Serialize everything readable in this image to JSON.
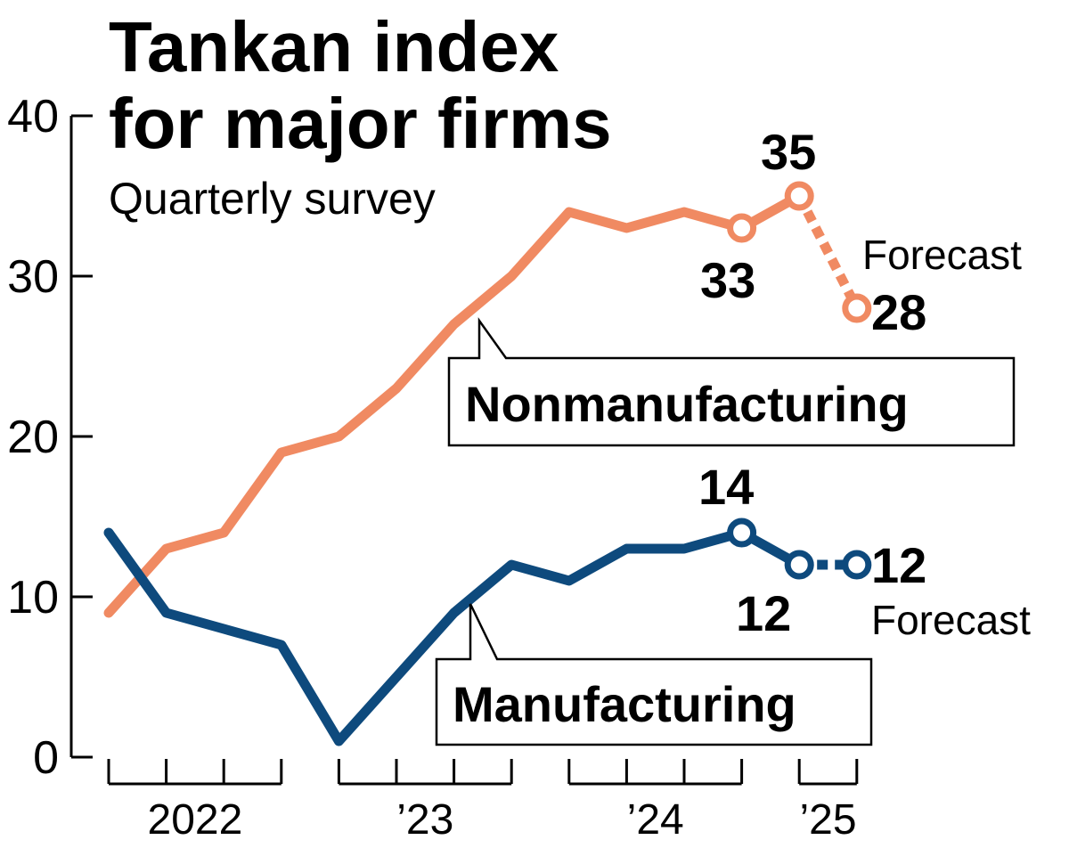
{
  "chart_data": {
    "type": "line",
    "title_lines": [
      "Tankan index",
      "for major firms"
    ],
    "subtitle": "Quarterly survey",
    "ylim": [
      0,
      40
    ],
    "yticks": [
      0,
      10,
      20,
      30,
      40
    ],
    "year_labels": [
      "2022",
      "’23",
      "’24",
      "’25"
    ],
    "forecast_label": "Forecast",
    "x": [
      "2022 Q1",
      "2022 Q2",
      "2022 Q3",
      "2022 Q4",
      "2023 Q1",
      "2023 Q2",
      "2023 Q3",
      "2023 Q4",
      "2024 Q1",
      "2024 Q2",
      "2024 Q3",
      "2024 Q4",
      "2025 Q1",
      "2025 Q2 (forecast)"
    ],
    "series": [
      {
        "name": "Nonmanufacturing",
        "color": "#f08a62",
        "values": [
          9,
          13,
          14,
          19,
          20,
          23,
          27,
          30,
          34,
          33,
          34,
          33,
          35,
          28
        ],
        "labeled_values": [
          {
            "value": "33",
            "index": 11
          },
          {
            "value": "35",
            "index": 12
          },
          {
            "value": "28",
            "index": 13
          }
        ]
      },
      {
        "name": "Manufacturing",
        "color": "#0e4a7d",
        "values": [
          14,
          9,
          8,
          7,
          1,
          5,
          9,
          12,
          11,
          13,
          13,
          14,
          12,
          12
        ],
        "labeled_values": [
          {
            "value": "14",
            "index": 11
          },
          {
            "value": "12",
            "index": 12
          },
          {
            "value": "12",
            "index": 13
          }
        ]
      }
    ],
    "forecast_from_index": 12
  }
}
